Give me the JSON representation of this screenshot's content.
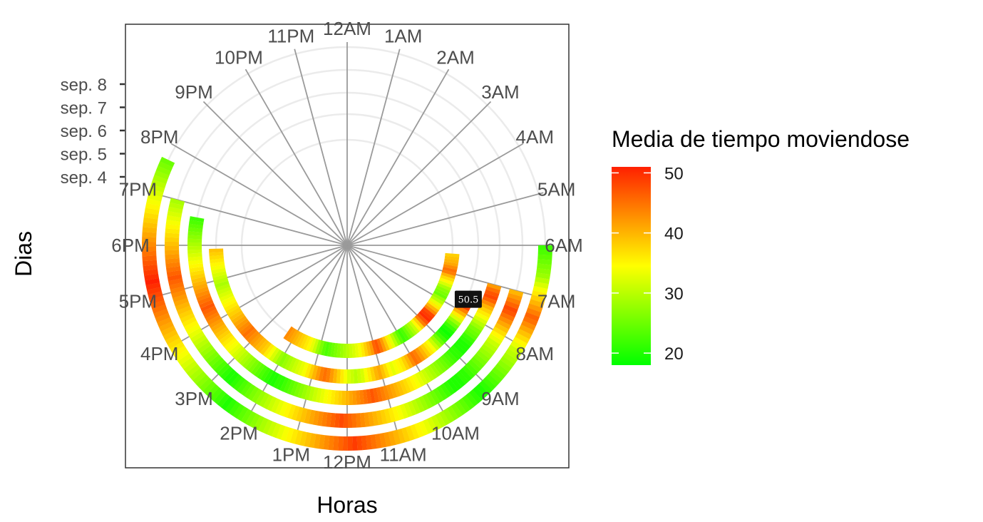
{
  "chart_data": {
    "type": "polar-heatmap",
    "title": "",
    "xlabel": "Horas",
    "ylabel": "Dias",
    "hour_labels": [
      "12AM",
      "1AM",
      "2AM",
      "3AM",
      "4AM",
      "5AM",
      "6AM",
      "7AM",
      "8AM",
      "9AM",
      "10AM",
      "11AM",
      "12PM",
      "1PM",
      "2PM",
      "3PM",
      "4PM",
      "5PM",
      "6PM",
      "7PM",
      "8PM",
      "9PM",
      "10PM",
      "11PM"
    ],
    "day_labels": [
      "sep. 4",
      "sep. 5",
      "sep. 6",
      "sep. 7",
      "sep. 8"
    ],
    "legend": {
      "title": "Media de tiempo moviendose",
      "range": [
        18,
        51
      ],
      "ticks": [
        20,
        30,
        40,
        50
      ],
      "colors": [
        "#00ff00",
        "#ffff00",
        "#ff2000"
      ]
    },
    "tooltip": {
      "label": "50.5",
      "hour": 7.6,
      "day_index": 1
    },
    "series": [
      {
        "name": "sep. 4",
        "start": 6.3,
        "end": 14.3,
        "values": [
          38,
          39,
          40,
          41,
          43,
          45,
          44,
          40,
          37,
          35,
          32,
          29,
          27,
          26,
          25,
          28,
          30,
          33,
          36,
          40,
          43,
          48,
          49,
          50,
          47,
          44,
          38,
          35,
          31,
          29,
          27,
          25,
          23,
          22,
          24,
          27,
          30,
          33,
          36,
          39,
          42,
          45,
          47,
          46,
          42,
          40,
          38,
          36,
          34,
          33,
          32,
          31,
          30,
          29,
          28,
          27,
          26,
          25,
          24,
          23,
          24,
          26,
          28,
          31,
          33,
          35,
          36,
          37,
          38,
          39,
          40,
          41,
          42,
          43
        ]
      },
      {
        "name": "sep. 5",
        "start": 7.5,
        "end": 17.9,
        "values": [
          45,
          47,
          50.5,
          48,
          44,
          40,
          36,
          32,
          28,
          25,
          22,
          20,
          19,
          20,
          22,
          25,
          28,
          31,
          34,
          36,
          38,
          40,
          42,
          44,
          45,
          43,
          40,
          38,
          36,
          35,
          34,
          33,
          35,
          37,
          39,
          41,
          40,
          38,
          36,
          34,
          32,
          31,
          30,
          31,
          32,
          34,
          36,
          38,
          40,
          42,
          44,
          45,
          44,
          42,
          40,
          38,
          36,
          34,
          33,
          32,
          31,
          30,
          29,
          28,
          27,
          28,
          30,
          32,
          34,
          36,
          38,
          39,
          40,
          41,
          42,
          43,
          44,
          45,
          44,
          43,
          42,
          41,
          40,
          39,
          38,
          37,
          36,
          35,
          34,
          33,
          32,
          31,
          30,
          29,
          30,
          31,
          32,
          33,
          34,
          35,
          36,
          37,
          38,
          39
        ]
      },
      {
        "name": "sep. 6",
        "start": 7.0,
        "end": 18.7,
        "values": [
          42,
          45,
          47,
          48,
          46,
          43,
          40,
          38,
          36,
          34,
          32,
          30,
          28,
          26,
          25,
          24,
          22,
          21,
          20,
          20,
          20,
          21,
          21,
          22,
          23,
          24,
          25,
          26,
          27,
          28,
          29,
          30,
          31,
          32,
          33,
          34,
          35,
          36,
          37,
          38,
          39,
          40,
          41,
          42,
          43,
          44,
          45,
          46,
          47,
          46,
          45,
          44,
          43,
          42,
          41,
          40,
          39,
          38,
          37,
          36,
          35,
          34,
          33,
          32,
          31,
          30,
          29,
          28,
          27,
          26,
          25,
          24,
          23,
          22,
          21,
          21,
          20,
          20,
          21,
          22,
          23,
          24,
          25,
          26,
          27,
          28,
          29,
          30,
          31,
          32,
          33,
          34,
          35,
          36,
          37,
          38,
          39,
          40,
          41,
          42,
          43,
          44,
          45,
          46,
          47,
          46,
          45,
          44,
          43,
          42,
          41,
          40,
          39,
          38,
          37,
          36,
          35,
          34,
          33,
          32,
          31,
          30,
          29,
          28,
          27,
          26,
          25,
          24,
          23,
          22
        ]
      },
      {
        "name": "sep. 7",
        "start": 7.0,
        "end": 19.0,
        "values": [
          40,
          42,
          44,
          46,
          48,
          47,
          45,
          43,
          41,
          39,
          37,
          35,
          33,
          31,
          30,
          29,
          28,
          27,
          26,
          25,
          24,
          23,
          22,
          21,
          21,
          20,
          20,
          20,
          21,
          22,
          23,
          24,
          25,
          26,
          27,
          28,
          29,
          30,
          31,
          32,
          33,
          34,
          35,
          36,
          37,
          38,
          39,
          40,
          41,
          42,
          43,
          44,
          45,
          46,
          47,
          48,
          47,
          46,
          45,
          44,
          43,
          42,
          41,
          40,
          39,
          38,
          37,
          36,
          35,
          34,
          33,
          32,
          31,
          30,
          29,
          28,
          27,
          26,
          25,
          24,
          23,
          22,
          21,
          20,
          20,
          21,
          22,
          23,
          24,
          25,
          26,
          27,
          28,
          29,
          30,
          31,
          32,
          33,
          34,
          35,
          36,
          37,
          38,
          39,
          40,
          41,
          42,
          43,
          44,
          45,
          46,
          47,
          46,
          45,
          44,
          43,
          42,
          41,
          40,
          39,
          38,
          37,
          36,
          35,
          34,
          33,
          32,
          31,
          30,
          29
        ]
      },
      {
        "name": "sep. 8",
        "start": 6.0,
        "end": 19.7,
        "values": [
          22,
          23,
          24,
          25,
          26,
          27,
          28,
          30,
          32,
          34,
          36,
          38,
          40,
          42,
          44,
          46,
          45,
          43,
          41,
          39,
          37,
          35,
          33,
          31,
          30,
          29,
          28,
          27,
          26,
          25,
          24,
          23,
          22,
          21,
          20,
          20,
          21,
          22,
          23,
          24,
          25,
          26,
          27,
          28,
          29,
          30,
          31,
          32,
          33,
          34,
          35,
          36,
          37,
          38,
          39,
          40,
          41,
          42,
          43,
          44,
          45,
          46,
          47,
          48,
          49,
          48,
          47,
          46,
          45,
          44,
          43,
          42,
          41,
          40,
          39,
          38,
          37,
          36,
          35,
          34,
          33,
          32,
          31,
          30,
          29,
          28,
          27,
          26,
          25,
          24,
          23,
          22,
          21,
          20,
          21,
          22,
          23,
          24,
          25,
          26,
          27,
          28,
          29,
          30,
          31,
          32,
          33,
          34,
          35,
          36,
          37,
          38,
          39,
          40,
          41,
          42,
          43,
          44,
          45,
          46,
          47,
          48,
          49,
          50,
          51,
          50,
          49,
          48,
          47,
          46,
          45,
          44,
          43,
          42,
          41,
          40,
          39,
          38,
          37,
          36,
          35,
          34,
          33,
          32,
          31,
          30,
          29,
          28,
          27,
          26,
          25
        ]
      }
    ]
  }
}
